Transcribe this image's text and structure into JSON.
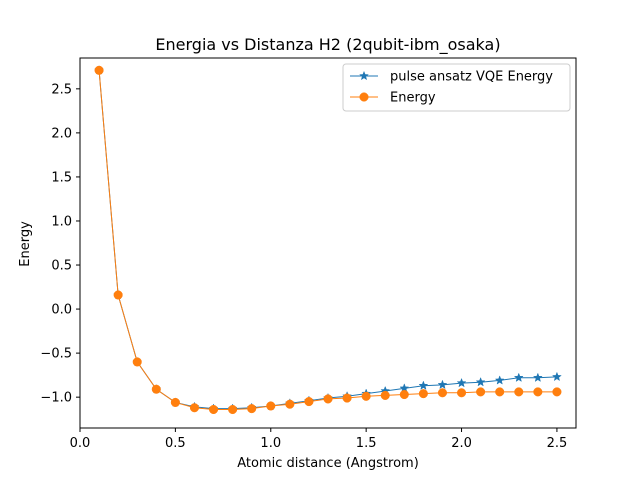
{
  "chart_data": {
    "type": "line",
    "title": "Energia vs Distanza H2 (2qubit-ibm_osaka)",
    "xlabel": "Atomic distance (Angstrom)",
    "ylabel": "Energy",
    "xlim": [
      0.0,
      2.6
    ],
    "ylim": [
      -1.35,
      2.85
    ],
    "xticks": [
      0.0,
      0.5,
      1.0,
      1.5,
      2.0,
      2.5
    ],
    "xtick_labels": [
      "0.0",
      "0.5",
      "1.0",
      "1.5",
      "2.0",
      "2.5"
    ],
    "yticks": [
      -1.0,
      -0.5,
      0.0,
      0.5,
      1.0,
      1.5,
      2.0,
      2.5
    ],
    "ytick_labels": [
      "−1.0",
      "−0.5",
      "0.0",
      "0.5",
      "1.0",
      "1.5",
      "2.0",
      "2.5"
    ],
    "grid": false,
    "legend_position": "top-right",
    "x": [
      0.1,
      0.2,
      0.3,
      0.4,
      0.5,
      0.6,
      0.7,
      0.8,
      0.9,
      1.0,
      1.1,
      1.2,
      1.3,
      1.4,
      1.5,
      1.6,
      1.7,
      1.8,
      1.9,
      2.0,
      2.1,
      2.2,
      2.3,
      2.4,
      2.5
    ],
    "series": [
      {
        "name": "pulse ansatz VQE Energy",
        "color": "#1f77b4",
        "marker": "star",
        "values": [
          2.71,
          0.16,
          -0.6,
          -0.91,
          -1.06,
          -1.11,
          -1.13,
          -1.13,
          -1.12,
          -1.1,
          -1.07,
          -1.04,
          -1.01,
          -0.99,
          -0.96,
          -0.93,
          -0.9,
          -0.87,
          -0.86,
          -0.84,
          -0.83,
          -0.81,
          -0.78,
          -0.78,
          -0.77
        ]
      },
      {
        "name": "Energy",
        "color": "#ff7f0e",
        "marker": "circle",
        "values": [
          2.71,
          0.16,
          -0.6,
          -0.91,
          -1.06,
          -1.12,
          -1.14,
          -1.14,
          -1.13,
          -1.1,
          -1.08,
          -1.05,
          -1.02,
          -1.01,
          -0.99,
          -0.98,
          -0.97,
          -0.96,
          -0.95,
          -0.95,
          -0.94,
          -0.94,
          -0.94,
          -0.94,
          -0.94
        ]
      }
    ]
  }
}
